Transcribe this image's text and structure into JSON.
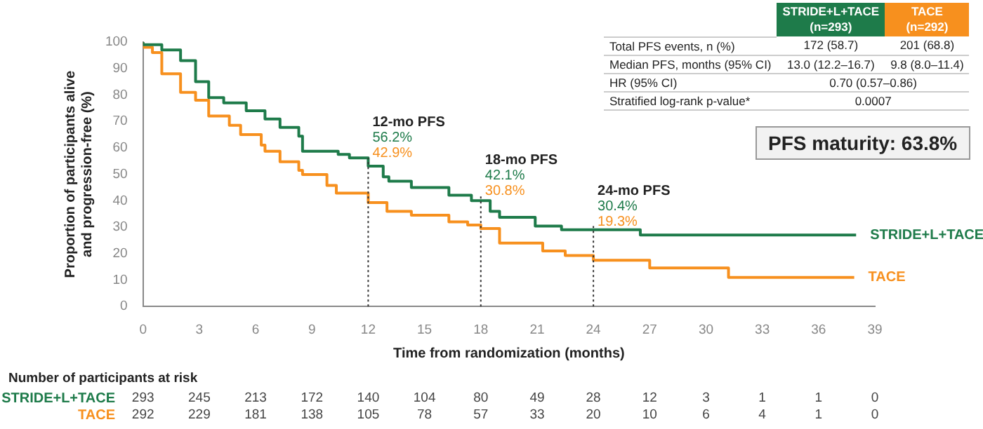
{
  "chart_data": {
    "type": "step",
    "xlabel": "Time from randomization (months)",
    "ylabel": "Proportion of participants alive\nand progression-free (%)",
    "xlim": [
      0,
      39
    ],
    "xticks": [
      0,
      3,
      6,
      9,
      12,
      15,
      18,
      21,
      24,
      27,
      30,
      33,
      36,
      39
    ],
    "ylim": [
      0,
      100
    ],
    "yticks": [
      0,
      10,
      20,
      30,
      40,
      50,
      60,
      70,
      80,
      90,
      100
    ],
    "grid": false,
    "legend": false,
    "series": [
      {
        "name": "STRIDE+L+TACE",
        "color": "#1e7b4a",
        "x": [
          0,
          1,
          2,
          2.8,
          3.5,
          4.3,
          5.5,
          6.5,
          7.3,
          8.3,
          8.5,
          10.4,
          11,
          12,
          12.8,
          13.1,
          14.3,
          16.3,
          17.5,
          18.5,
          19,
          20.9,
          22.3,
          26.5,
          28,
          38
        ],
        "values": [
          100,
          99,
          97,
          93,
          85,
          79,
          77,
          74,
          70.9,
          67.7,
          64.4,
          58.7,
          57.5,
          56.2,
          53.1,
          49,
          47.4,
          45,
          42.1,
          40,
          36,
          33.7,
          30.4,
          29,
          27,
          27
        ]
      },
      {
        "name": "TACE",
        "color": "#f7901e",
        "x": [
          0,
          0.5,
          1,
          2,
          2.8,
          3.5,
          4.6,
          5.2,
          6.3,
          6.5,
          7.3,
          8.3,
          8.5,
          9.8,
          10.3,
          12,
          13,
          14.3,
          16.3,
          17.3,
          18,
          19,
          21.3,
          22.5,
          24,
          27,
          31.2,
          33.3,
          37.9
        ],
        "values": [
          100,
          98,
          96,
          88,
          81,
          78,
          72,
          68.5,
          65,
          61,
          58.7,
          54.7,
          51.5,
          49.9,
          45.8,
          42.9,
          39.3,
          36,
          34.5,
          32,
          30.8,
          29.5,
          24,
          21,
          19.3,
          17.5,
          14.6,
          11,
          11
        ]
      }
    ],
    "ref_lines": [
      {
        "axis": "x",
        "value": 12,
        "label": null,
        "line_style": "dotted"
      },
      {
        "axis": "x",
        "value": 18,
        "label": null,
        "line_style": "dotted"
      },
      {
        "axis": "x",
        "value": 24,
        "label": null,
        "line_style": "dotted"
      }
    ],
    "annotations": [
      "Number of participants at risk",
      "293 245 213 172 140 104 80 49 28 12 3 1 1 0",
      "292 229 181 138 105 78 57 33 20 10 6 4 1 0",
      "PFS maturity: 63.8%",
      "(n=293)",
      "(n=292)",
      "Total PFS events, n (%)",
      "172 (58.7)",
      "201 (68.8)",
      "Median PFS, months (95% CI)",
      "13.0 (12.2–16.7)",
      "9.8 (8.0–11.4)",
      "HR (95% CI)",
      "0.70 (0.57–0.86)",
      "Stratified log-rank p-value*",
      "0.0007",
      "12-mo PFS",
      "18-mo PFS",
      "24-mo PFS",
      {
        "text": "56.2%",
        "x": 12,
        "y": 56.2
      },
      {
        "text": "42.9%",
        "x": 12,
        "y": 42.9
      },
      {
        "text": "42.1%",
        "x": 18,
        "y": 42.1
      },
      {
        "text": "30.8%",
        "x": 18,
        "y": 30.8
      },
      {
        "text": "30.4%",
        "x": 24,
        "y": 30.4
      },
      {
        "text": "19.3%",
        "x": 24,
        "y": 19.3
      }
    ]
  }
}
